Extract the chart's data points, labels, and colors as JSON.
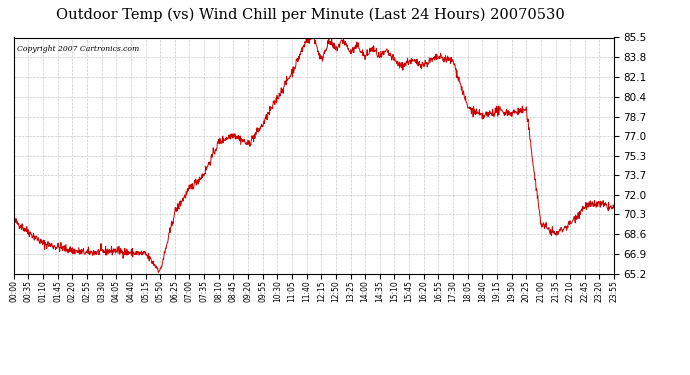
{
  "title": "Outdoor Temp (vs) Wind Chill per Minute (Last 24 Hours) 20070530",
  "copyright": "Copyright 2007 Cartronics.com",
  "line_color": "#cc0000",
  "background_color": "#ffffff",
  "plot_bg_color": "#ffffff",
  "grid_color": "#bbbbbb",
  "ylim": [
    65.2,
    85.5
  ],
  "yticks": [
    65.2,
    66.9,
    68.6,
    70.3,
    72.0,
    73.7,
    75.3,
    77.0,
    78.7,
    80.4,
    82.1,
    83.8,
    85.5
  ],
  "xtick_labels": [
    "00:00",
    "00:35",
    "01:10",
    "01:45",
    "02:20",
    "02:55",
    "03:30",
    "04:05",
    "04:40",
    "05:15",
    "05:50",
    "06:25",
    "07:00",
    "07:35",
    "08:10",
    "08:45",
    "09:20",
    "09:55",
    "10:30",
    "11:05",
    "11:40",
    "12:15",
    "12:50",
    "13:25",
    "14:00",
    "14:35",
    "15:10",
    "15:45",
    "16:20",
    "16:55",
    "17:30",
    "18:05",
    "18:40",
    "19:15",
    "19:50",
    "20:25",
    "21:00",
    "21:35",
    "22:10",
    "22:45",
    "23:20",
    "23:55"
  ],
  "control_x": [
    0,
    1,
    2,
    3,
    4,
    5,
    6,
    7,
    8,
    9,
    10,
    11,
    12,
    13,
    14,
    15,
    16,
    17,
    18,
    19,
    20,
    20.5,
    21,
    21.5,
    22,
    22.5,
    23,
    23.5,
    24,
    24.5,
    25,
    25.5,
    26,
    26.5,
    27,
    28,
    29,
    30,
    31,
    32,
    33,
    34,
    35,
    36,
    37,
    38,
    39,
    40,
    41
  ],
  "control_y": [
    69.8,
    68.8,
    67.8,
    67.5,
    67.2,
    67.0,
    67.1,
    67.2,
    67.0,
    66.9,
    65.4,
    70.5,
    72.5,
    73.8,
    76.5,
    77.2,
    76.3,
    78.0,
    80.3,
    82.5,
    85.3,
    85.5,
    83.5,
    85.2,
    84.5,
    85.3,
    84.2,
    84.8,
    83.8,
    84.6,
    83.8,
    84.3,
    83.5,
    83.0,
    83.5,
    83.2,
    83.8,
    83.5,
    79.5,
    78.7,
    79.2,
    79.0,
    79.3,
    69.5,
    68.6,
    69.5,
    71.0,
    71.2,
    70.8
  ],
  "noise_std": 0.18,
  "noise_seed": 42
}
